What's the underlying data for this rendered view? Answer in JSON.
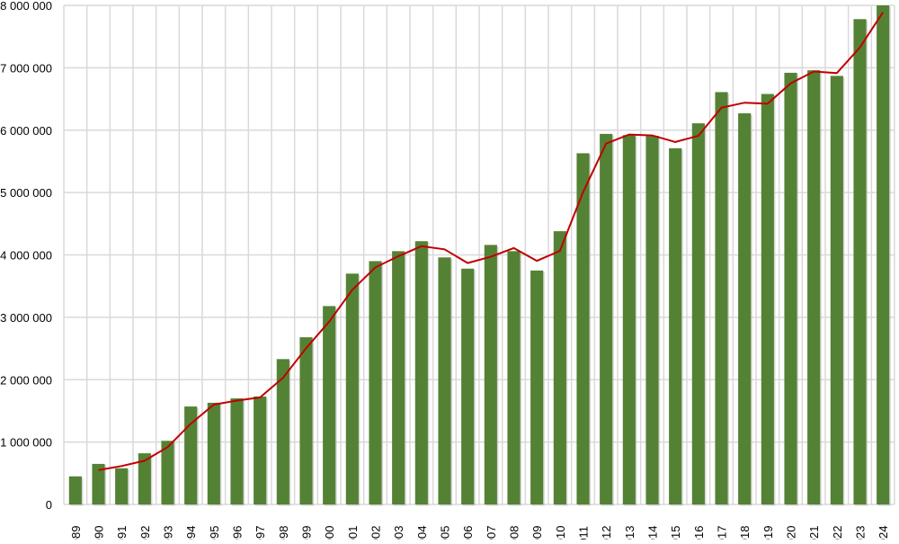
{
  "chart_data": {
    "type": "bar",
    "title": "",
    "xlabel": "",
    "ylabel": "",
    "ylim": [
      0,
      8000000
    ],
    "yticks": [
      0,
      1000000,
      2000000,
      3000000,
      4000000,
      5000000,
      6000000,
      7000000,
      8000000
    ],
    "ytick_labels": [
      "0",
      "1 000 000",
      "2 000 000",
      "3 000 000",
      "4 000 000",
      "5 000 000",
      "6 000 000",
      "7 000 000",
      "8 000 000"
    ],
    "grid": true,
    "categories": [
      "1989",
      "1990",
      "1991",
      "1992",
      "1993",
      "1994",
      "1995",
      "1996",
      "1997",
      "1998",
      "1999",
      "2000",
      "2001",
      "2002",
      "2003",
      "2004",
      "2005",
      "2006",
      "2007",
      "2008",
      "2009",
      "2010",
      "2011",
      "2012",
      "2013",
      "2014",
      "2015",
      "2016",
      "2017",
      "2018",
      "2019",
      "2020",
      "2021",
      "2022",
      "2023",
      "2024"
    ],
    "values": [
      450000,
      650000,
      580000,
      820000,
      1020000,
      1570000,
      1630000,
      1700000,
      1730000,
      2330000,
      2680000,
      3180000,
      3700000,
      3900000,
      4060000,
      4220000,
      3960000,
      3780000,
      4160000,
      4060000,
      3750000,
      4380000,
      5630000,
      5940000,
      5920000,
      5910000,
      5710000,
      6110000,
      6610000,
      6270000,
      6580000,
      6920000,
      6960000,
      6870000,
      7780000,
      8000000
    ],
    "trendline": {
      "type": "moving-average",
      "period": 2,
      "color": "#c00000"
    },
    "bar_color": "#548235"
  }
}
